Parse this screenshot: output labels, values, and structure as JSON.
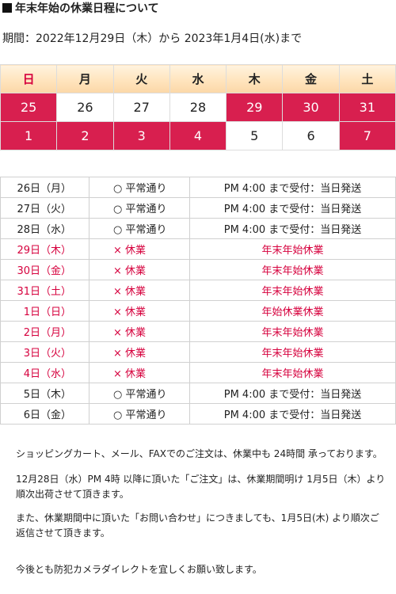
{
  "title": "年末年始の休業日程について",
  "period": "期間：2022年12月29日（木）から 2023年1月4日(水)まで",
  "calendar": {
    "weekdays": [
      "日",
      "月",
      "火",
      "水",
      "木",
      "金",
      "土"
    ],
    "weeks": [
      [
        {
          "d": "25",
          "holiday": true
        },
        {
          "d": "26",
          "holiday": false
        },
        {
          "d": "27",
          "holiday": false
        },
        {
          "d": "28",
          "holiday": false
        },
        {
          "d": "29",
          "holiday": true
        },
        {
          "d": "30",
          "holiday": true
        },
        {
          "d": "31",
          "holiday": true
        }
      ],
      [
        {
          "d": "1",
          "holiday": true
        },
        {
          "d": "2",
          "holiday": true
        },
        {
          "d": "3",
          "holiday": true
        },
        {
          "d": "4",
          "holiday": true
        },
        {
          "d": "5",
          "holiday": false
        },
        {
          "d": "6",
          "holiday": false
        },
        {
          "d": "7",
          "holiday": true
        }
      ]
    ],
    "colors": {
      "holiday": "#d81f4f",
      "sunday_label": "#d6003d",
      "header_bg": "#ffe4bd"
    }
  },
  "schedule": [
    {
      "day": "26日（月）",
      "status": "○ 平常通り",
      "note": "PM 4:00 まで受付：当日発送",
      "closed": false
    },
    {
      "day": "27日（火）",
      "status": "○ 平常通り",
      "note": "PM 4:00 まで受付：当日発送",
      "closed": false
    },
    {
      "day": "28日（水）",
      "status": "○ 平常通り",
      "note": "PM 4:00 まで受付：当日発送",
      "closed": false
    },
    {
      "day": "29日（木）",
      "status": "× 休業",
      "note": "年末年始休業",
      "closed": true
    },
    {
      "day": "30日（金）",
      "status": "× 休業",
      "note": "年末年始休業",
      "closed": true
    },
    {
      "day": "31日（土）",
      "status": "× 休業",
      "note": "年末年始休業",
      "closed": true
    },
    {
      "day": "1日（日）",
      "status": "× 休業",
      "note": "年始休業休業",
      "closed": true
    },
    {
      "day": "2日（月）",
      "status": "× 休業",
      "note": "年末年始休業",
      "closed": true
    },
    {
      "day": "3日（火）",
      "status": "× 休業",
      "note": "年末年始休業",
      "closed": true
    },
    {
      "day": "4日（水）",
      "status": "× 休業",
      "note": "年末年始休業",
      "closed": true
    },
    {
      "day": "5日（木）",
      "status": "○ 平常通り",
      "note": "PM 4:00 まで受付：当日発送",
      "closed": false
    },
    {
      "day": "6日（金）",
      "status": "○ 平常通り",
      "note": "PM 4:00 まで受付：当日発送",
      "closed": false
    }
  ],
  "notes": {
    "n1": "ショッピングカート、メール、FAXでのご注文は、休業中も 24時間 承っております。",
    "n2": "12月28日（水）PM 4時 以降に頂いた「ご注文」は、休業期間明け 1月5日（木）より順次出荷させて頂きます。",
    "n3": "また、休業期間中に頂いた「お問い合わせ」につきましても、1月5日(木) より順次ご返信させて頂きます。",
    "n4": "今後とも防犯カメラダイレクトを宜しくお願い致します。"
  }
}
